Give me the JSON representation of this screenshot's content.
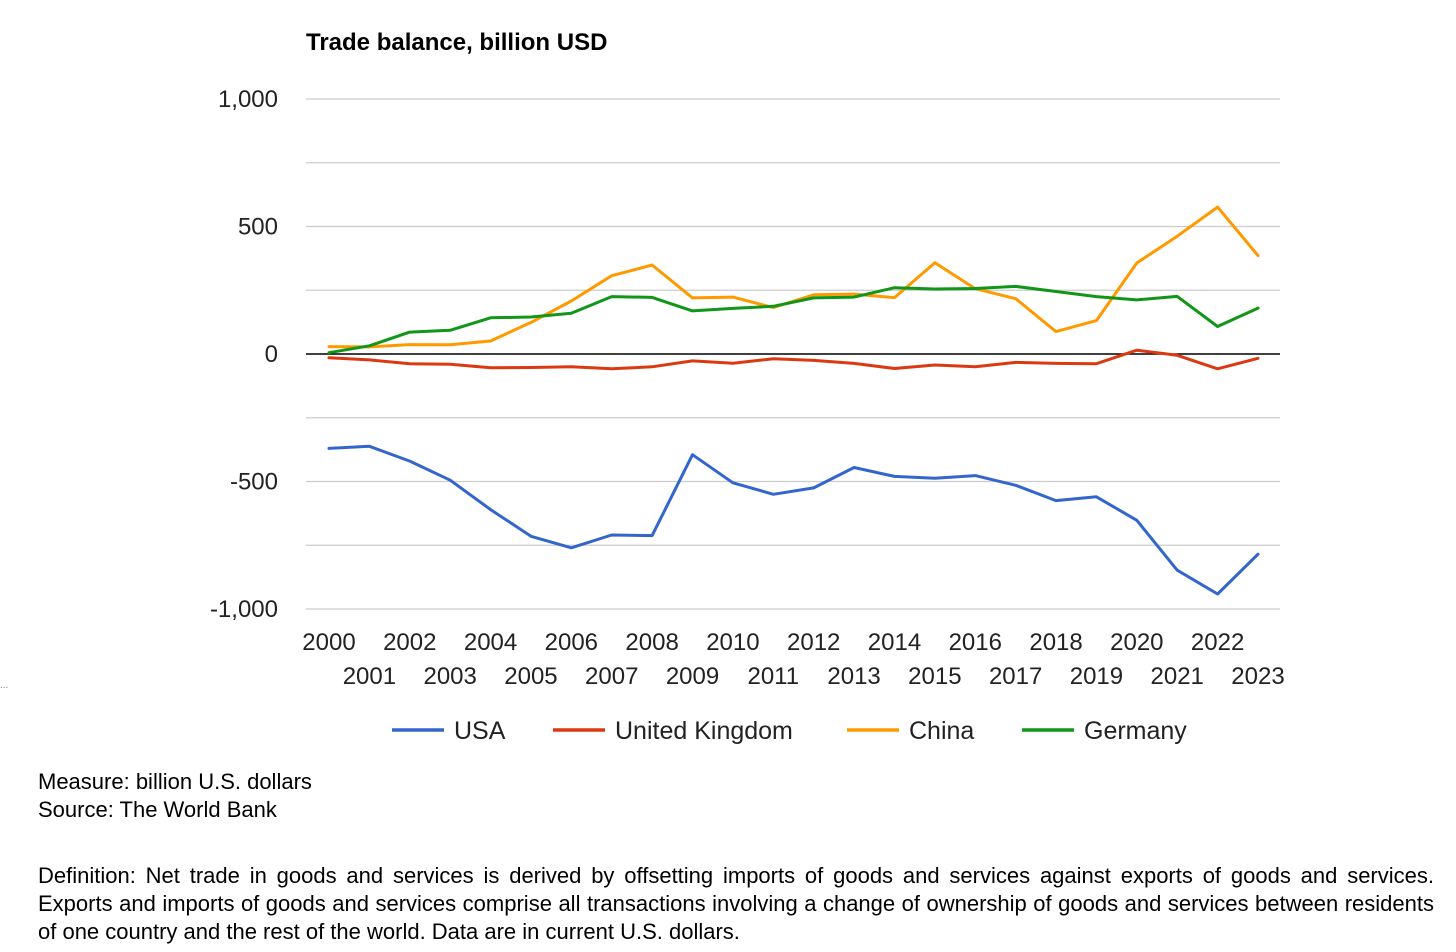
{
  "chart_data": {
    "type": "line",
    "title": "Trade balance, billion USD",
    "xlabel": "",
    "ylabel": "",
    "ylim": [
      -1000,
      1000
    ],
    "ytick_values": [
      -1000,
      -500,
      0,
      500,
      1000
    ],
    "ytick_labels": [
      "-1,000",
      "-500",
      "0",
      "500",
      "1,000"
    ],
    "grid": true,
    "legend_position": "bottom",
    "x": [
      2000,
      2001,
      2002,
      2003,
      2004,
      2005,
      2006,
      2007,
      2008,
      2009,
      2010,
      2011,
      2012,
      2013,
      2014,
      2015,
      2016,
      2017,
      2018,
      2019,
      2020,
      2021,
      2022,
      2023
    ],
    "x_labels": [
      "2000",
      "2001",
      "2002",
      "2003",
      "2004",
      "2005",
      "2006",
      "2007",
      "2008",
      "2009",
      "2010",
      "2011",
      "2012",
      "2013",
      "2014",
      "2015",
      "2016",
      "2017",
      "2018",
      "2019",
      "2020",
      "2021",
      "2022",
      "2023"
    ],
    "series": [
      {
        "name": "USA",
        "color": "#3366cc",
        "values": [
          -370,
          -362,
          -420,
          -495,
          -610,
          -715,
          -760,
          -710,
          -712,
          -395,
          -505,
          -550,
          -525,
          -445,
          -480,
          -487,
          -477,
          -515,
          -575,
          -560,
          -652,
          -848,
          -941,
          -785
        ]
      },
      {
        "name": "United Kingdom",
        "color": "#dc3912",
        "values": [
          -15,
          -23,
          -38,
          -40,
          -54,
          -53,
          -50,
          -58,
          -50,
          -27,
          -36,
          -19,
          -25,
          -37,
          -57,
          -43,
          -50,
          -33,
          -37,
          -38,
          15,
          -5,
          -58,
          -17
        ]
      },
      {
        "name": "China",
        "color": "#ff9900",
        "values": [
          29,
          28,
          37,
          36,
          51,
          124,
          208,
          307,
          349,
          220,
          223,
          182,
          232,
          235,
          221,
          358,
          256,
          217,
          88,
          131,
          357,
          462,
          576,
          386
        ]
      },
      {
        "name": "Germany",
        "color": "#109618",
        "values": [
          5,
          32,
          86,
          93,
          142,
          145,
          160,
          225,
          222,
          169,
          179,
          187,
          220,
          223,
          260,
          255,
          257,
          265,
          245,
          225,
          212,
          226,
          108,
          180
        ]
      }
    ]
  },
  "notes": {
    "measure": "Measure: billion U.S. dollars",
    "source": "Source: The World Bank",
    "definition": "Definition: Net trade in goods and services is derived by offsetting imports of goods and services against exports of goods and services. Exports and imports of goods and services comprise all transactions involving a change of ownership of goods and services between residents of one country and the rest of the world. Data are in current U.S. dollars."
  },
  "colors": {
    "gridline": "#cccccc",
    "zero_line": "#000000",
    "background": "#ffffff"
  },
  "stray_mark": "..."
}
